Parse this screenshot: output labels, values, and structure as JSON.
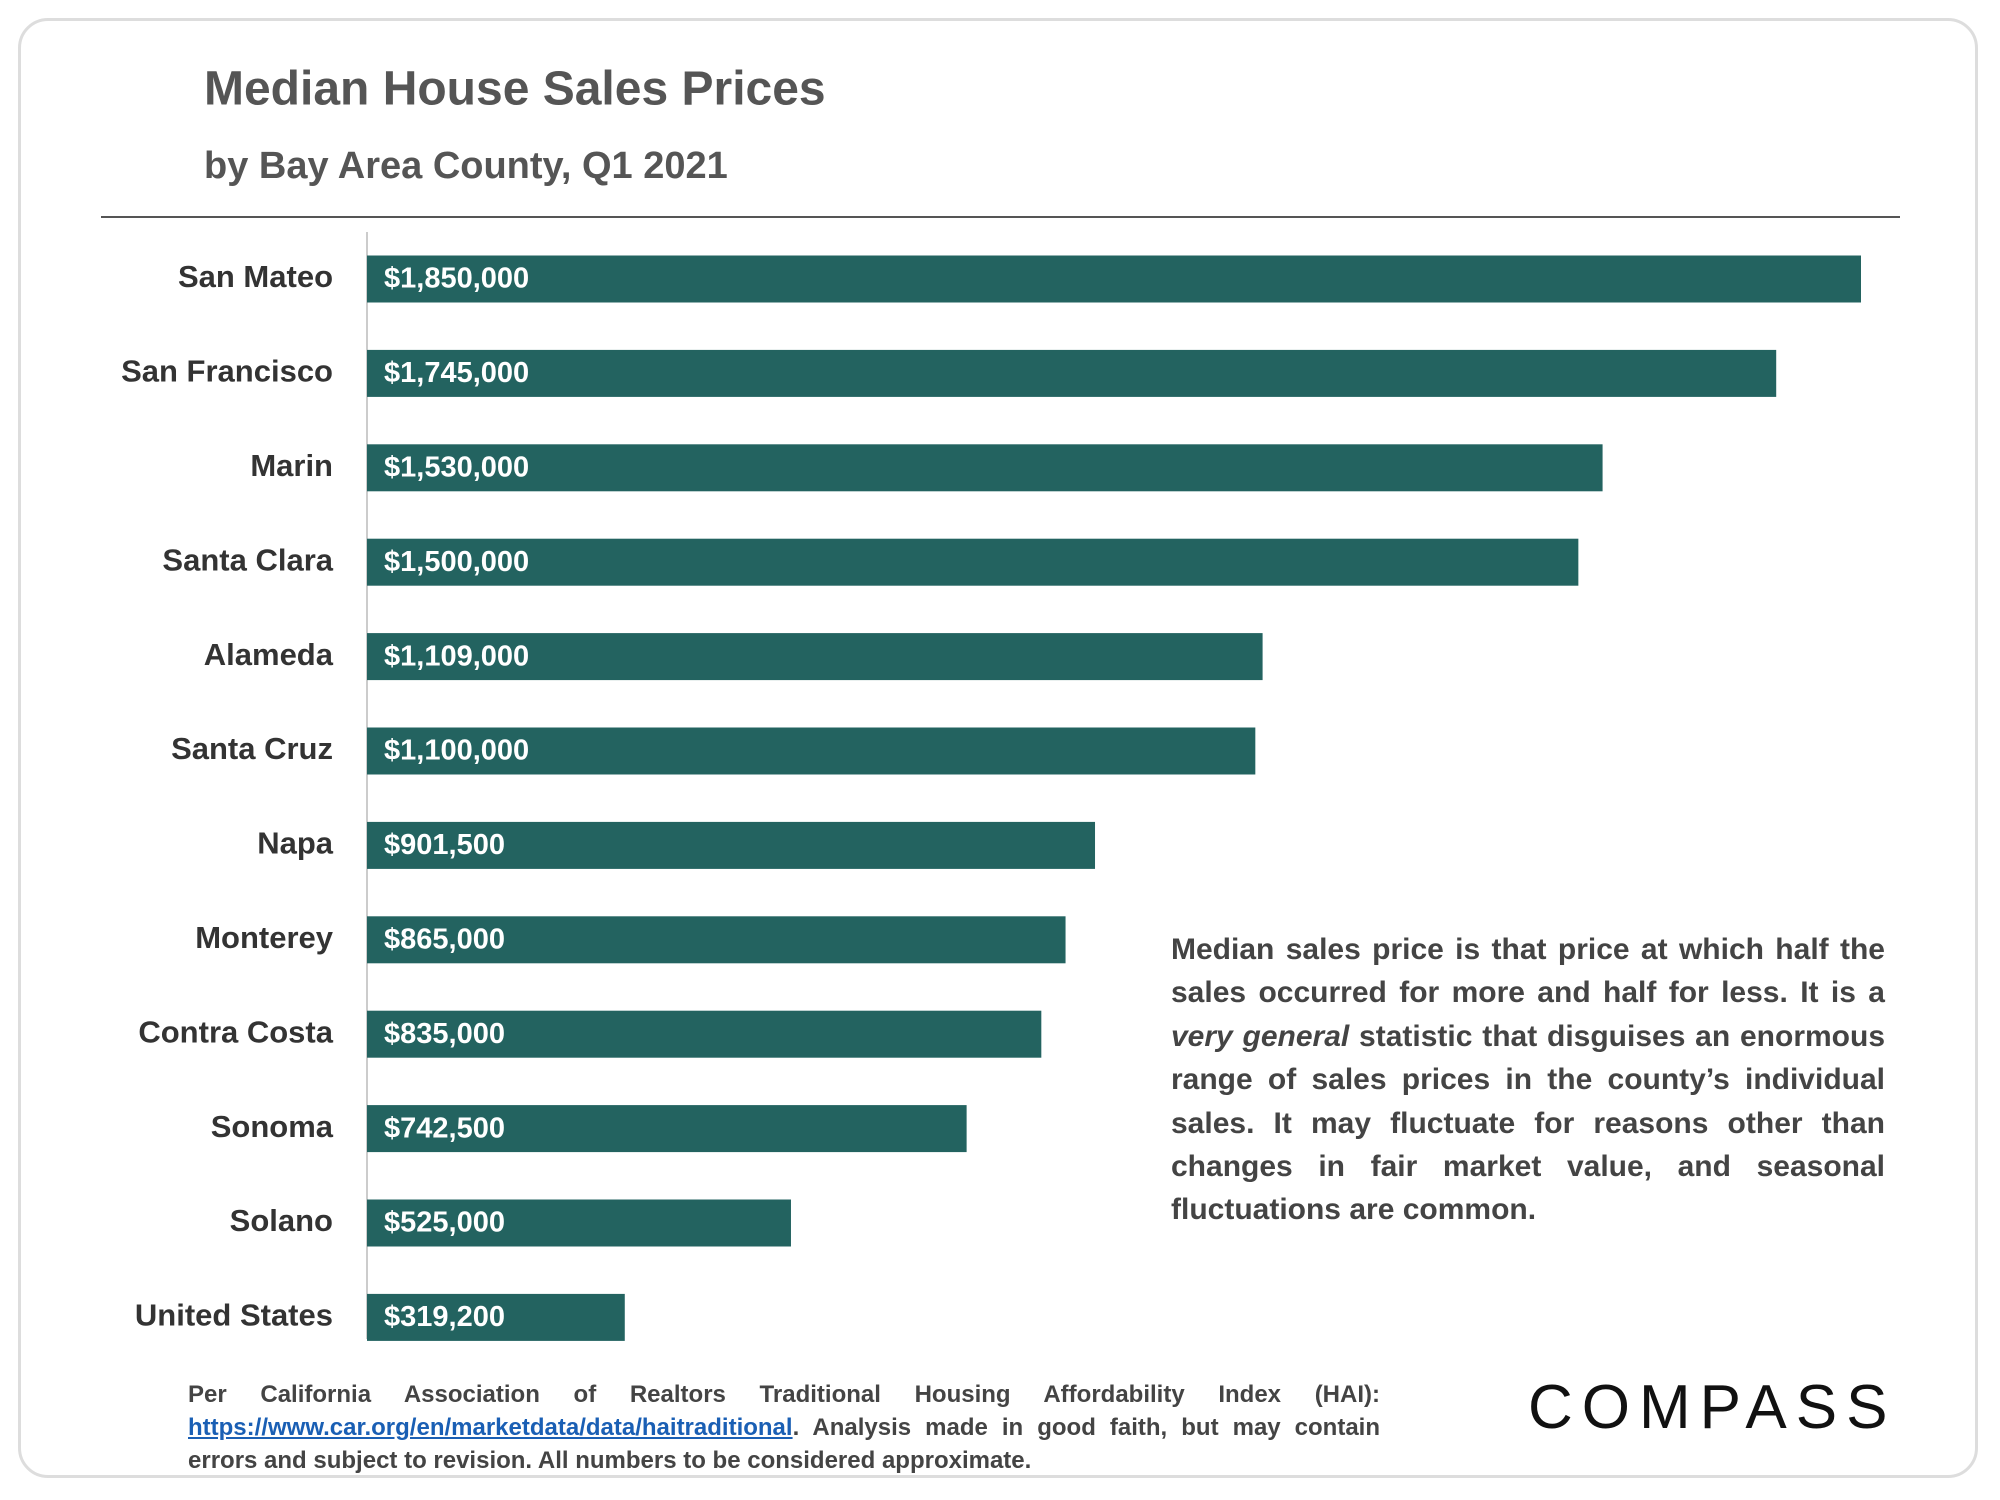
{
  "chart_data": {
    "type": "bar",
    "orientation": "horizontal",
    "title": "Median House Sales Prices",
    "subtitle": "by Bay Area County, Q1 2021",
    "categories": [
      "San Mateo",
      "San Francisco",
      "Marin",
      "Santa Clara",
      "Alameda",
      "Santa Cruz",
      "Napa",
      "Monterey",
      "Contra Costa",
      "Sonoma",
      "Solano",
      "United States"
    ],
    "values": [
      1850000,
      1745000,
      1530000,
      1500000,
      1109000,
      1100000,
      901500,
      865000,
      835000,
      742500,
      525000,
      319200
    ],
    "value_labels": [
      "$1,850,000",
      "$1,745,000",
      "$1,530,000",
      "$1,500,000",
      "$1,109,000",
      "$1,100,000",
      "$901,500",
      "$865,000",
      "$835,000",
      "$742,500",
      "$525,000",
      "$319,200"
    ],
    "color": "#236360",
    "annotation": [
      "Median sales price is that price at which half the sales occurred for more and half for less. It is a ",
      "very general",
      " statistic that disguises an enormous range of sales prices in the county’s individual sales. It may fluctuate for reasons other than changes in fair market value, and seasonal fluctuations are common."
    ]
  },
  "footer": {
    "text_before": "Per California Association of Realtors Traditional Housing Affordability Index (HAI): ",
    "link": "https://www.car.org/en/marketdata/data/haitraditional",
    "text_after": ". Analysis made in good faith, but may contain errors and subject to revision. All numbers to be considered approximate."
  },
  "logo": "COMPASS"
}
